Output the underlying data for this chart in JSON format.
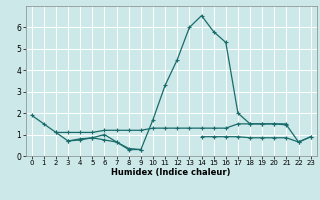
{
  "xlabel": "Humidex (Indice chaleur)",
  "bg_color": "#cce8e8",
  "line_color": "#1a6b6b",
  "grid_color": "#ffffff",
  "xlim": [
    -0.5,
    23.5
  ],
  "ylim": [
    0,
    7
  ],
  "xticks": [
    0,
    1,
    2,
    3,
    4,
    5,
    6,
    7,
    8,
    9,
    10,
    11,
    12,
    13,
    14,
    15,
    16,
    17,
    18,
    19,
    20,
    21,
    22,
    23
  ],
  "yticks": [
    0,
    1,
    2,
    3,
    4,
    5,
    6
  ],
  "series0_x": [
    0,
    1,
    2,
    3,
    4,
    5,
    6,
    7,
    8,
    9,
    10,
    11,
    12,
    13,
    14,
    15,
    16,
    17,
    18,
    19,
    20,
    21,
    22,
    23
  ],
  "series0_y": [
    1.9,
    1.5,
    1.1,
    0.7,
    0.8,
    0.85,
    1.0,
    0.65,
    0.3,
    0.3,
    1.7,
    3.3,
    4.5,
    6.0,
    6.55,
    5.8,
    5.3,
    2.0,
    1.5,
    1.5,
    1.5,
    1.45,
    0.65,
    0.9
  ],
  "series1_x": [
    2,
    3,
    4,
    5,
    6,
    7,
    8,
    9,
    10,
    11,
    12,
    13,
    14,
    15,
    16,
    17,
    18,
    19,
    20,
    21
  ],
  "series1_y": [
    1.1,
    1.1,
    1.1,
    1.1,
    1.2,
    1.2,
    1.2,
    1.2,
    1.3,
    1.3,
    1.3,
    1.3,
    1.3,
    1.3,
    1.3,
    1.5,
    1.5,
    1.5,
    1.5,
    1.5
  ],
  "series2a_x": [
    3,
    4,
    5,
    6,
    7,
    8,
    9
  ],
  "series2a_y": [
    0.7,
    0.75,
    0.85,
    0.75,
    0.65,
    0.35,
    0.3
  ],
  "series2b_x": [
    14,
    15,
    16,
    17,
    18,
    19,
    20,
    21,
    22,
    23
  ],
  "series2b_y": [
    0.9,
    0.9,
    0.9,
    0.9,
    0.85,
    0.85,
    0.85,
    0.85,
    0.65,
    0.9
  ]
}
